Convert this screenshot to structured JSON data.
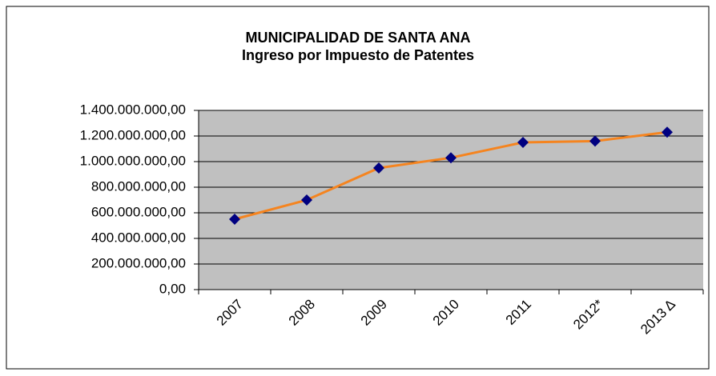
{
  "chart_data": {
    "type": "line",
    "title": "MUNICIPALIDAD DE SANTA ANA",
    "subtitle": "Ingreso por Impuesto de Patentes",
    "categories": [
      "2007",
      "2008",
      "2009",
      "2010",
      "2011",
      "2012*",
      "2013 Δ"
    ],
    "series": [
      {
        "name": "Ingreso por Impuesto de Patentes",
        "color": "#f5841f",
        "marker_color": "#000080",
        "values": [
          550000000,
          700000000,
          950000000,
          1030000000,
          1150000000,
          1160000000,
          1230000000
        ]
      }
    ],
    "ylim": [
      0,
      1400000000
    ],
    "yticks": [
      {
        "value": 0,
        "label": "0,00"
      },
      {
        "value": 200000000,
        "label": "200.000.000,00"
      },
      {
        "value": 400000000,
        "label": "400.000.000,00"
      },
      {
        "value": 600000000,
        "label": "600.000.000,00"
      },
      {
        "value": 800000000,
        "label": "800.000.000,00"
      },
      {
        "value": 1000000000,
        "label": "1.000.000.000,00"
      },
      {
        "value": 1200000000,
        "label": "1.200.000.000,00"
      },
      {
        "value": 1400000000,
        "label": "1.400.000.000,00"
      }
    ],
    "grid": true,
    "plot_background": "#c0c0c0"
  }
}
